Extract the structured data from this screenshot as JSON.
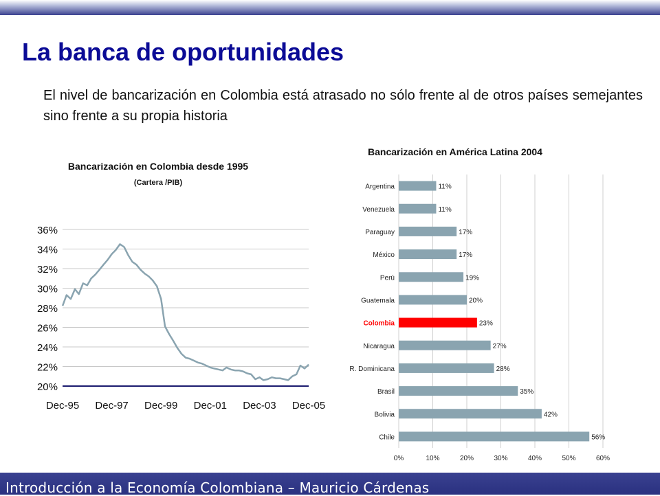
{
  "slide": {
    "title": "La banca de oportunidades",
    "subtitle": "El nivel de bancarización en Colombia está atrasado no sólo frente al de otros países semejantes sino frente a su propia historia",
    "footer": "Introducción a la Economía Colombiana – Mauricio Cárdenas"
  },
  "colors": {
    "title": "#0b0b96",
    "bar": "#8aa4b0",
    "highlight_bar": "#ff0000",
    "line": "#8aa4b0",
    "footer_band": "#2f3688"
  },
  "chart_data": [
    {
      "type": "line",
      "title": "Bancarización en Colombia desde 1995",
      "subtitle": "(Cartera /PIB)",
      "x_tick_labels": [
        "Dec-95",
        "Dec-97",
        "Dec-99",
        "Dec-01",
        "Dec-03",
        "Dec-05"
      ],
      "y_tick_labels": [
        "20%",
        "22%",
        "24%",
        "26%",
        "28%",
        "30%",
        "32%",
        "34%",
        "36%"
      ],
      "ylim": [
        20,
        36
      ],
      "xlim": [
        1995.917,
        2005.917
      ],
      "grid": true,
      "series": [
        {
          "x": [
            1995.92,
            1996.08,
            1996.25,
            1996.42,
            1996.58,
            1996.75,
            1996.92,
            1997.08,
            1997.25,
            1997.42,
            1997.58,
            1997.75,
            1997.92,
            1998.08,
            1998.25,
            1998.42,
            1998.58,
            1998.75,
            1998.92,
            1999.08,
            1999.25,
            1999.42,
            1999.58,
            1999.75,
            1999.92,
            2000.08,
            2000.25,
            2000.42,
            2000.58,
            2000.75,
            2000.92,
            2001.08,
            2001.25,
            2001.42,
            2001.58,
            2001.75,
            2001.92,
            2002.08,
            2002.25,
            2002.42,
            2002.58,
            2002.75,
            2002.92,
            2003.08,
            2003.25,
            2003.42,
            2003.58,
            2003.75,
            2003.92,
            2004.08,
            2004.25,
            2004.42,
            2004.58,
            2004.75,
            2004.92,
            2005.08,
            2005.25,
            2005.42,
            2005.58,
            2005.75,
            2005.92
          ],
          "y": [
            28.2,
            29.3,
            28.9,
            29.9,
            29.4,
            30.5,
            30.3,
            31.0,
            31.4,
            31.9,
            32.4,
            32.9,
            33.5,
            33.9,
            34.5,
            34.2,
            33.4,
            32.7,
            32.4,
            31.9,
            31.5,
            31.2,
            30.8,
            30.2,
            28.9,
            26.1,
            25.3,
            24.6,
            23.9,
            23.3,
            22.9,
            22.8,
            22.6,
            22.4,
            22.3,
            22.1,
            21.9,
            21.8,
            21.7,
            21.6,
            21.9,
            21.7,
            21.6,
            21.6,
            21.5,
            21.3,
            21.2,
            20.7,
            20.9,
            20.6,
            20.7,
            20.9,
            20.8,
            20.8,
            20.7,
            20.6,
            21.0,
            21.2,
            22.1,
            21.8,
            22.2
          ]
        }
      ]
    },
    {
      "type": "bar",
      "orientation": "horizontal",
      "title": "Bancarización en América Latina  2004",
      "categories": [
        "Argentina",
        "Venezuela",
        "Paraguay",
        "México",
        "Perú",
        "Guatemala",
        "Colombia",
        "Nicaragua",
        "R. Dominicana",
        "Brasil",
        "Bolivia",
        "Chile"
      ],
      "values": [
        11,
        11,
        17,
        17,
        19,
        20,
        23,
        27,
        28,
        35,
        42,
        56
      ],
      "value_labels": [
        "11%",
        "11%",
        "17%",
        "17%",
        "19%",
        "20%",
        "23%",
        "27%",
        "28%",
        "35%",
        "42%",
        "56%"
      ],
      "highlight": "Colombia",
      "x_tick_labels": [
        "0%",
        "10%",
        "20%",
        "30%",
        "40%",
        "50%",
        "60%"
      ],
      "xlim": [
        0,
        60
      ],
      "grid": true
    }
  ]
}
